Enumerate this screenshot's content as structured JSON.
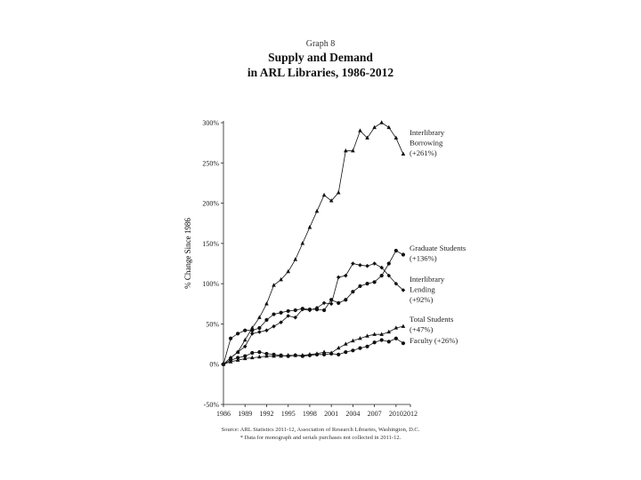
{
  "header": {
    "graph_number": "Graph 8",
    "title_line1": "Supply and Demand",
    "title_line2": "in ARL Libraries, 1986-2012"
  },
  "footer": {
    "source": "Source: ARL Statistics 2011-12, Association of Research Libraries, Washington, D.C.",
    "note": "* Data for monograph and serials purchases not collected in 2011-12."
  },
  "chart_data": {
    "type": "line",
    "ylabel": "% Change Since 1986",
    "xlabel": "",
    "ylim": [
      -50,
      300
    ],
    "xlim": [
      1986,
      2012
    ],
    "y_ticks": [
      -50,
      0,
      50,
      100,
      150,
      200,
      250,
      300
    ],
    "y_tick_labels": [
      "-50%",
      "0%",
      "50%",
      "100%",
      "150%",
      "200%",
      "250%",
      "300%"
    ],
    "x_ticks": [
      1986,
      1989,
      1992,
      1995,
      1998,
      2001,
      2004,
      2007,
      2010,
      2012
    ],
    "x_tick_labels": [
      "1986",
      "1989",
      "1992",
      "1995",
      "1998",
      "2001",
      "2004",
      "2007",
      "2010",
      "2012"
    ],
    "grid": false,
    "x": [
      1986,
      1987,
      1988,
      1989,
      1990,
      1991,
      1992,
      1993,
      1994,
      1995,
      1996,
      1997,
      1998,
      1999,
      2000,
      2001,
      2002,
      2003,
      2004,
      2005,
      2006,
      2007,
      2008,
      2009,
      2010,
      2011
    ],
    "series": [
      {
        "label_lines": [
          "Interlibrary",
          "Borrowing",
          "(+261%)"
        ],
        "marker": "triangle",
        "values": [
          0,
          8,
          15,
          30,
          45,
          58,
          75,
          98,
          105,
          115,
          130,
          150,
          170,
          190,
          210,
          203,
          213,
          265,
          265,
          290,
          281,
          294,
          300,
          294,
          281,
          261
        ]
      },
      {
        "label_lines": [
          "Graduate Students",
          "(+136%)"
        ],
        "marker": "circle",
        "values": [
          0,
          32,
          38,
          42,
          42,
          45,
          55,
          62,
          64,
          66,
          67,
          69,
          68,
          68,
          67,
          80,
          76,
          80,
          90,
          97,
          100,
          102,
          110,
          125,
          141,
          136
        ]
      },
      {
        "label_lines": [
          "Interlibrary",
          "Lending",
          "(+92%)"
        ],
        "marker": "diamond",
        "values": [
          0,
          8,
          15,
          22,
          38,
          40,
          42,
          47,
          52,
          60,
          58,
          68,
          67,
          70,
          76,
          75,
          108,
          110,
          125,
          123,
          122,
          125,
          120,
          110,
          100,
          92
        ]
      },
      {
        "label_lines": [
          "Total Students",
          "(+47%)"
        ],
        "marker": "triangle",
        "values": [
          0,
          3,
          5,
          7,
          8,
          9,
          10,
          10,
          10,
          11,
          11,
          11,
          12,
          13,
          15,
          14,
          20,
          25,
          29,
          32,
          35,
          37,
          37,
          40,
          45,
          47
        ]
      },
      {
        "label_lines": [
          "Faculty (+26%)"
        ],
        "marker": "circle",
        "values": [
          0,
          5,
          8,
          10,
          14,
          15,
          13,
          12,
          11,
          10,
          11,
          10,
          11,
          12,
          12,
          13,
          12,
          15,
          17,
          20,
          22,
          27,
          30,
          28,
          32,
          26
        ]
      }
    ]
  }
}
